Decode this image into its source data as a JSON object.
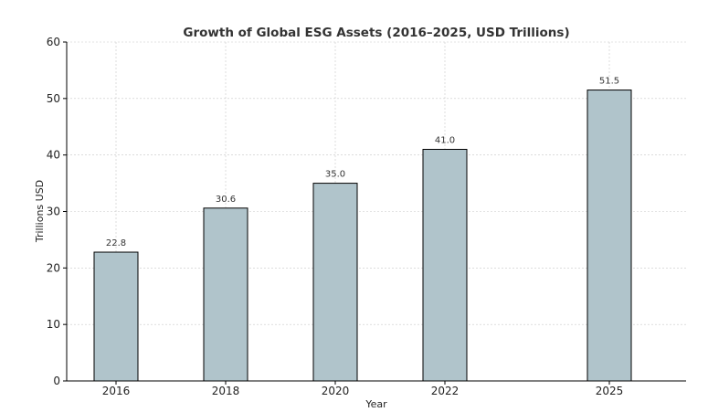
{
  "chart_data": {
    "type": "bar",
    "title": "Growth of Global ESG Assets (2016–2025, USD Trillions)",
    "xlabel": "Year",
    "ylabel": "Trillions USD",
    "x": [
      2016,
      2018,
      2020,
      2022,
      2025
    ],
    "categories": [
      "2016",
      "2018",
      "2020",
      "2022",
      "2025"
    ],
    "values": [
      22.8,
      30.6,
      35.0,
      41.0,
      51.5
    ],
    "data_labels": [
      "22.8",
      "30.6",
      "35.0",
      "41.0",
      "51.5"
    ],
    "ylim": [
      0,
      60
    ],
    "yticks": [
      0,
      10,
      20,
      30,
      40,
      50,
      60
    ],
    "xlim": [
      2015.1,
      2026.4
    ],
    "bar_width_years": 0.8,
    "grid": true,
    "bar_color": "#b0c4cb",
    "edge_color": "#000000"
  }
}
